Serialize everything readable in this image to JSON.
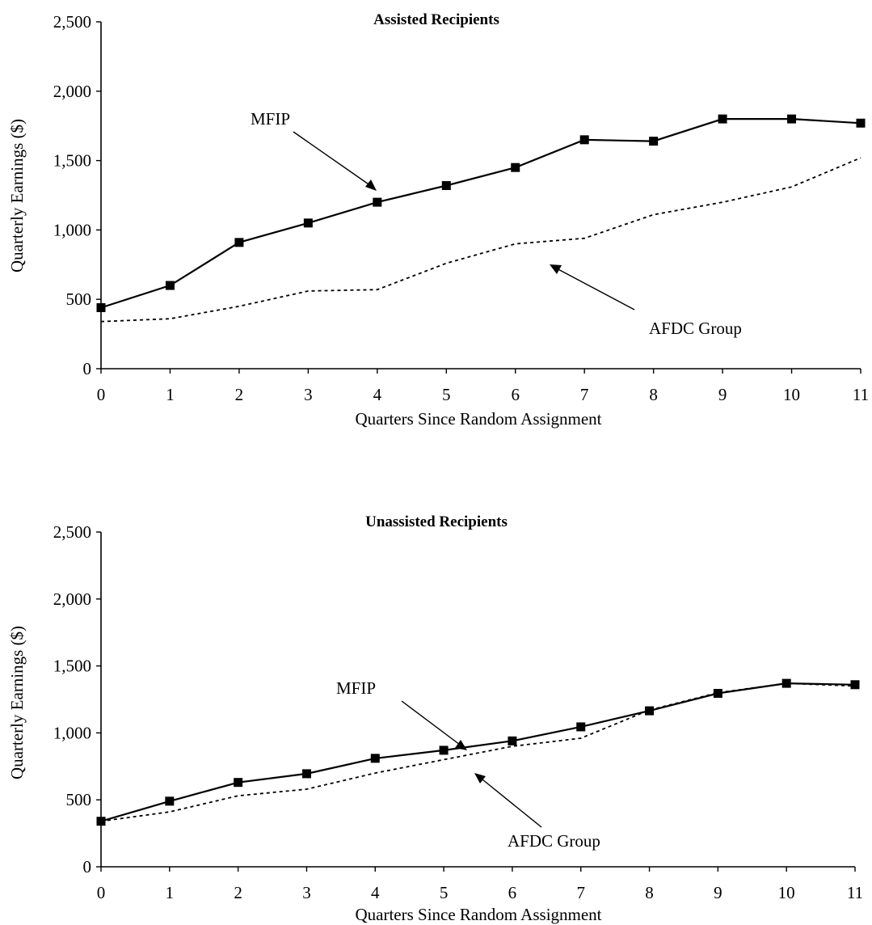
{
  "chart_data": [
    {
      "type": "line",
      "title": "Assisted Recipients",
      "xlabel": "Quarters Since Random Assignment",
      "ylabel": "Quarterly Earnings ($)",
      "x": [
        0,
        1,
        2,
        3,
        4,
        5,
        6,
        7,
        8,
        9,
        10,
        11
      ],
      "x_tick_labels": [
        "0",
        "1",
        "2",
        "3",
        "4",
        "5",
        "6",
        "7",
        "8",
        "9",
        "10",
        "11"
      ],
      "y_tick_labels": [
        "0",
        "500",
        "1,000",
        "1,500",
        "2,000",
        "2,500"
      ],
      "y_ticks": [
        0,
        500,
        1000,
        1500,
        2000,
        2500
      ],
      "ylim": [
        0,
        2500
      ],
      "xlim": [
        0,
        11
      ],
      "grid": false,
      "series": [
        {
          "name": "MFIP",
          "style": "solid-with-square-markers",
          "values": [
            440,
            600,
            910,
            1050,
            1200,
            1320,
            1450,
            1650,
            1640,
            1800,
            1800,
            1770
          ]
        },
        {
          "name": "AFDC Group",
          "style": "dotted",
          "values": [
            340,
            360,
            450,
            560,
            570,
            760,
            900,
            940,
            1110,
            1200,
            1310,
            1520
          ]
        }
      ],
      "annotations": [
        {
          "text": "MFIP",
          "series": "MFIP",
          "points_to_x": 4
        },
        {
          "text": "AFDC Group",
          "series": "AFDC Group",
          "points_to_x": 6.6
        }
      ]
    },
    {
      "type": "line",
      "title": "Unassisted Recipients",
      "xlabel": "Quarters Since Random Assignment",
      "ylabel": "Quarterly Earnings ($)",
      "x": [
        0,
        1,
        2,
        3,
        4,
        5,
        6,
        7,
        8,
        9,
        10,
        11
      ],
      "x_tick_labels": [
        "0",
        "1",
        "2",
        "3",
        "4",
        "5",
        "6",
        "7",
        "8",
        "9",
        "10",
        "11"
      ],
      "y_tick_labels": [
        "0",
        "500",
        "1,000",
        "1,500",
        "2,000",
        "2,500"
      ],
      "y_ticks": [
        0,
        500,
        1000,
        1500,
        2000,
        2500
      ],
      "ylim": [
        0,
        2500
      ],
      "xlim": [
        0,
        11
      ],
      "grid": false,
      "series": [
        {
          "name": "MFIP",
          "style": "solid-with-square-markers",
          "values": [
            340,
            490,
            630,
            695,
            810,
            870,
            940,
            1045,
            1165,
            1295,
            1370,
            1360
          ]
        },
        {
          "name": "AFDC Group",
          "style": "dotted",
          "values": [
            340,
            410,
            530,
            580,
            700,
            800,
            900,
            960,
            1170,
            1300,
            1370,
            1350
          ]
        }
      ],
      "annotations": [
        {
          "text": "MFIP",
          "series": "MFIP",
          "points_to_x": 5.2
        },
        {
          "text": "AFDC Group",
          "series": "AFDC Group",
          "points_to_x": 5.4
        }
      ]
    }
  ]
}
